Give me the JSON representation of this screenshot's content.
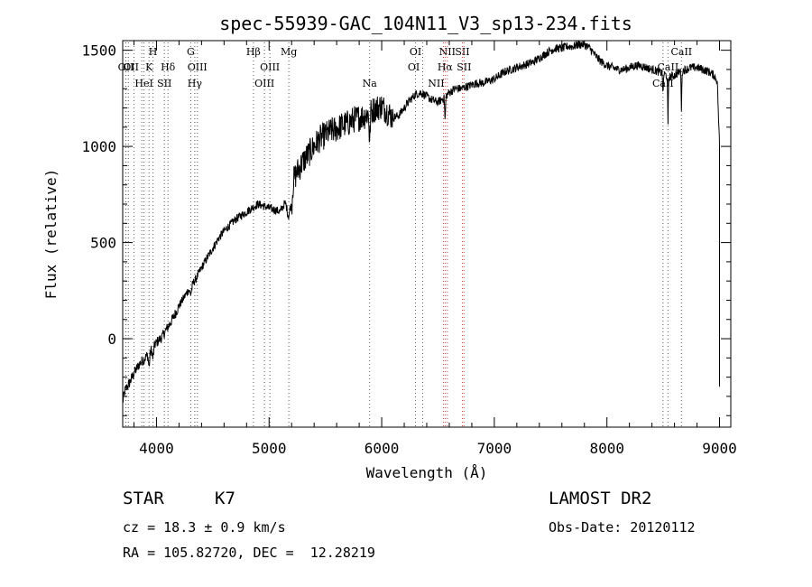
{
  "chart_data": {
    "type": "line",
    "title": "spec-55939-GAC_104N11_V3_sp13-234.fits",
    "xlabel": "Wavelength (Å)",
    "ylabel": "Flux (relative)",
    "xlim": [
      3700,
      9100
    ],
    "ylim": [
      -460,
      1550
    ],
    "xticks": [
      4000,
      5000,
      6000,
      7000,
      8000,
      9000
    ],
    "yticks": [
      0,
      500,
      1000,
      1500
    ],
    "grid": false,
    "series": [
      {
        "x": [
          3700,
          3720,
          3760,
          3800,
          3850,
          3900,
          3950,
          4000,
          4050,
          4100,
          4150,
          4200,
          4250,
          4300,
          4350,
          4400,
          4450,
          4500,
          4550,
          4600,
          4650,
          4700,
          4750,
          4800,
          4850,
          4900,
          4950,
          5000,
          5050,
          5100,
          5150,
          5200,
          5250,
          5300,
          5350,
          5400,
          5450,
          5500,
          5550,
          5600,
          5650,
          5700,
          5750,
          5800,
          5850,
          5900,
          5950,
          6000,
          6050,
          6100,
          6150,
          6200,
          6250,
          6300,
          6350,
          6400,
          6450,
          6500,
          6550,
          6600,
          6650,
          6700,
          6750,
          6800,
          6850,
          6900,
          6950,
          7000,
          7050,
          7100,
          7150,
          7200,
          7250,
          7300,
          7350,
          7400,
          7450,
          7500,
          7550,
          7600,
          7650,
          7700,
          7750,
          7800,
          7850,
          7900,
          7950,
          8000,
          8050,
          8100,
          8150,
          8200,
          8250,
          8300,
          8350,
          8400,
          8450,
          8500,
          8550,
          8600,
          8650,
          8700,
          8750,
          8800,
          8850,
          8900,
          8950,
          8980,
          9000
        ],
        "y": [
          -330,
          -270,
          -230,
          -180,
          -130,
          -100,
          -60,
          -20,
          10,
          60,
          110,
          170,
          220,
          270,
          310,
          370,
          420,
          470,
          520,
          560,
          590,
          620,
          640,
          660,
          680,
          700,
          690,
          680,
          670,
          660,
          720,
          800,
          870,
          920,
          960,
          1000,
          1040,
          1060,
          1080,
          1090,
          1110,
          1120,
          1140,
          1150,
          1160,
          1180,
          1200,
          1210,
          1180,
          1150,
          1160,
          1200,
          1240,
          1270,
          1280,
          1260,
          1240,
          1230,
          1250,
          1280,
          1300,
          1300,
          1310,
          1320,
          1330,
          1330,
          1340,
          1350,
          1370,
          1390,
          1400,
          1410,
          1420,
          1430,
          1440,
          1460,
          1480,
          1500,
          1510,
          1510,
          1520,
          1520,
          1530,
          1530,
          1510,
          1470,
          1440,
          1420,
          1410,
          1400,
          1400,
          1410,
          1420,
          1420,
          1410,
          1400,
          1390,
          1380,
          1360,
          1370,
          1390,
          1400,
          1410,
          1410,
          1400,
          1390,
          1370,
          1340,
          1000
        ]
      }
    ],
    "lines": [
      {
        "wl": 3728,
        "labels": [
          "OII"
        ],
        "row": 1,
        "dx": 0
      },
      {
        "wl": 3750,
        "labels": [],
        "row": 0,
        "dx": 0
      },
      {
        "wl": 3800,
        "labels": [],
        "row": 0,
        "dx": 0
      },
      {
        "wl": 3869,
        "labels": [
          "OII",
          "HeI"
        ],
        "row": 1,
        "dx": -12
      },
      {
        "wl": 3889,
        "labels": [
          "HeI"
        ],
        "row": 2,
        "dx": 0
      },
      {
        "wl": 3934,
        "labels": [
          "K"
        ],
        "row": 1,
        "dx": 0
      },
      {
        "wl": 3969,
        "labels": [
          "H"
        ],
        "row": 0,
        "dx": 0
      },
      {
        "wl": 4070,
        "labels": [
          "SII"
        ],
        "row": 2,
        "dx": 0
      },
      {
        "wl": 4102,
        "labels": [
          "Hδ"
        ],
        "row": 1,
        "dx": 0
      },
      {
        "wl": 4304,
        "labels": [
          "G"
        ],
        "row": 0,
        "dx": 0
      },
      {
        "wl": 4340,
        "labels": [
          "Hγ"
        ],
        "row": 2,
        "dx": 0
      },
      {
        "wl": 4363,
        "labels": [
          "OIII"
        ],
        "row": 1,
        "dx": 0
      },
      {
        "wl": 4861,
        "labels": [
          "Hβ"
        ],
        "row": 0,
        "dx": 0
      },
      {
        "wl": 4959,
        "labels": [
          "OIII"
        ],
        "row": 2,
        "dx": 0
      },
      {
        "wl": 5007,
        "labels": [
          "OIII"
        ],
        "row": 1,
        "dx": 0
      },
      {
        "wl": 5175,
        "labels": [
          "Mg"
        ],
        "row": 0,
        "dx": 0
      },
      {
        "wl": 5893,
        "labels": [
          "Na"
        ],
        "row": 2,
        "dx": 0
      },
      {
        "wl": 6300,
        "labels": [
          "OI"
        ],
        "row": 0,
        "dx": 0
      },
      {
        "wl": 6364,
        "labels": [
          "OI"
        ],
        "row": 1,
        "dx": -10
      },
      {
        "wl": 6548,
        "labels": [
          "NII",
          "Hα"
        ],
        "row": 2,
        "dx": -8
      },
      {
        "wl": 6563,
        "labels": [
          "Hα"
        ],
        "row": 1,
        "dx": 0
      },
      {
        "wl": 6583,
        "labels": [
          "NII"
        ],
        "row": 0,
        "dx": 0
      },
      {
        "wl": 6716,
        "labels": [
          "SII"
        ],
        "row": 0,
        "dx": 0
      },
      {
        "wl": 6731,
        "labels": [
          "SII"
        ],
        "row": 1,
        "dx": 0
      },
      {
        "wl": 8498,
        "labels": [
          "CaII"
        ],
        "row": 2,
        "dx": 0
      },
      {
        "wl": 8542,
        "labels": [
          "CaII"
        ],
        "row": 1,
        "dx": 0
      },
      {
        "wl": 8662,
        "labels": [
          "CaII"
        ],
        "row": 0,
        "dx": 0
      }
    ]
  },
  "info": {
    "object_class": "STAR",
    "subclass": "K7",
    "survey": "LAMOST DR2",
    "velocity": "cz = 18.3 ± 0.9 km/s",
    "obs_date": "Obs-Date: 20120112",
    "coords": "RA = 105.82720, DEC =  12.28219"
  }
}
